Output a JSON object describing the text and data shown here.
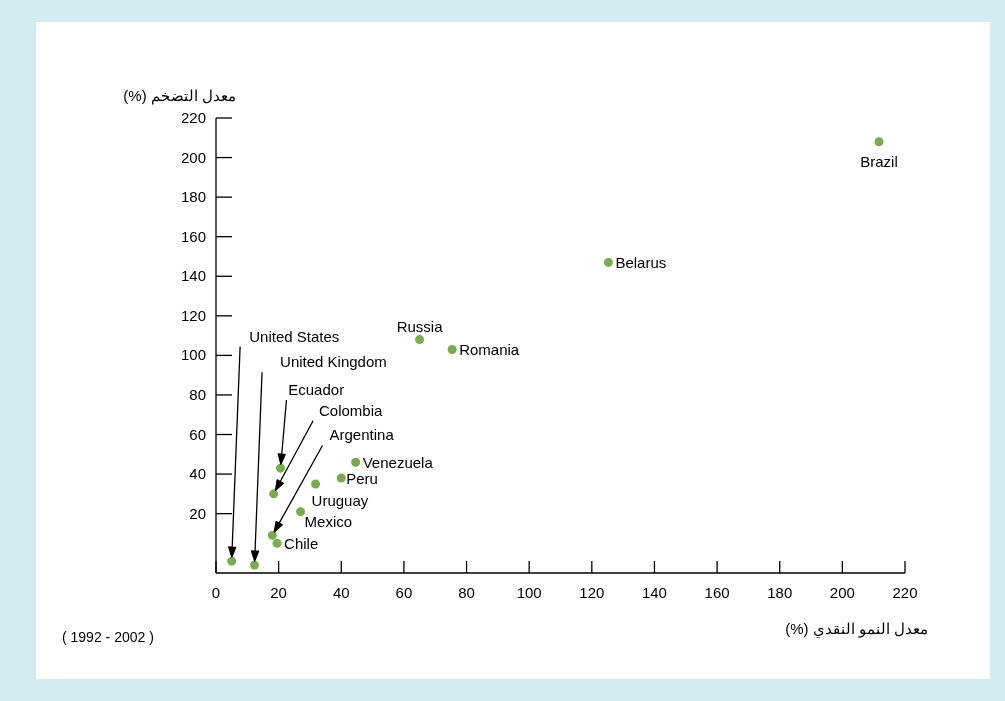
{
  "chart_data": {
    "type": "scatter",
    "xlabel": "معدل النمو النقدي (%)",
    "ylabel": "معدل التضخم (%)",
    "x": [
      5,
      12.3,
      20.6,
      18.4,
      18,
      19.5,
      27,
      31.8,
      40,
      44.6,
      65,
      75.4,
      125.3,
      211.7
    ],
    "values": [
      -4,
      -6,
      43,
      30,
      9,
      5,
      21,
      35,
      38,
      46,
      108,
      103,
      147,
      208
    ],
    "color": "#78ac4c",
    "marker": "circle",
    "xlim": [
      0,
      220
    ],
    "ylim": [
      -10,
      220
    ],
    "xticks": [
      0,
      20,
      40,
      60,
      80,
      100,
      120,
      140,
      160,
      180,
      200,
      220
    ],
    "yticks": [
      20,
      40,
      60,
      80,
      100,
      120,
      140,
      160,
      180,
      200,
      220
    ],
    "annotations": [
      "United States",
      "United Kingdom",
      "Ecuador",
      "Colombia",
      "Argentina",
      {
        "text": "Chile",
        "x": 19.5,
        "y": 5
      },
      {
        "text": "Mexico",
        "x": 27,
        "y": 21
      },
      {
        "text": "Uruguay",
        "x": 31.8,
        "y": 35
      },
      {
        "text": "Peru",
        "x": 40,
        "y": 38
      },
      {
        "text": "Venezuela",
        "x": 44.6,
        "y": 46
      },
      {
        "text": "Russia",
        "x": 65,
        "y": 108
      },
      {
        "text": "Romania",
        "x": 75.4,
        "y": 103
      },
      {
        "text": "Belarus",
        "x": 125.3,
        "y": 147
      },
      {
        "text": "Brazil",
        "x": 211.7,
        "y": 208
      },
      "( 1992 - 2002 )"
    ]
  }
}
